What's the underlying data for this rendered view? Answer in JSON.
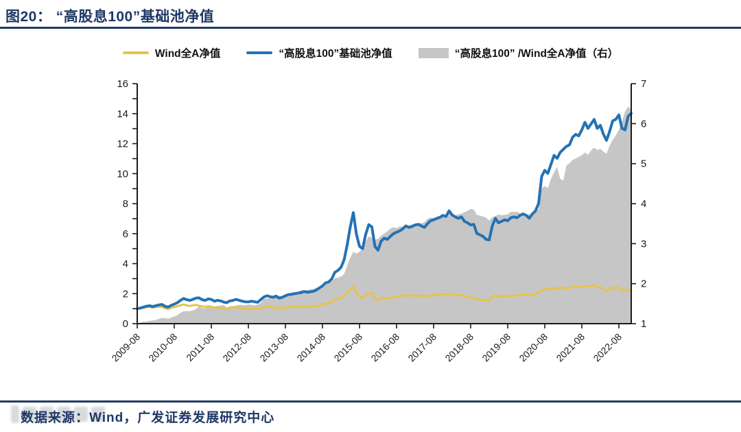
{
  "title": "图20： “高股息100”基础池净值",
  "footer": {
    "source_text": "数据来源：Wind，广发证券发展研究中心"
  },
  "colors": {
    "accent_navy": "#1F3864",
    "line_yellow": "#E6C34C",
    "line_blue": "#2472B5",
    "area_gray": "#C6C6C6",
    "axis_black": "#1a1a1a"
  },
  "legend": [
    {
      "label": "Wind全A净值",
      "type": "line",
      "color": "#E6C34C"
    },
    {
      "label": "“高股息100”基础池净值",
      "type": "line",
      "color": "#2472B5"
    },
    {
      "label": "“高股息100” /Wind全A净值（右）",
      "type": "area",
      "color": "#C6C6C6"
    }
  ],
  "chart_data": {
    "type": "line+area",
    "title": "“高股息100”基础池净值",
    "x_unit": "month",
    "x_start": "2009-08",
    "x_tick_every_months": 12,
    "x_tick_labels": [
      "2009-08",
      "2010-08",
      "2011-08",
      "2012-08",
      "2013-08",
      "2014-08",
      "2015-08",
      "2016-08",
      "2017-08",
      "2018-08",
      "2019-08",
      "2020-08",
      "2021-08",
      "2022-08"
    ],
    "left_axis": {
      "min": 0,
      "max": 16,
      "label_step": 2,
      "tick_step": 1
    },
    "right_axis": {
      "min": 1,
      "max": 7,
      "label_step": 1,
      "tick_step": 1
    },
    "grid": false,
    "legend_position": "top-center",
    "series": [
      {
        "name": "“高股息100” /Wind全A净值（右）",
        "type": "area",
        "axis": "right",
        "color": "#C6C6C6",
        "values": [
          1.0,
          1.02,
          1.05,
          1.05,
          1.07,
          1.08,
          1.09,
          1.12,
          1.14,
          1.14,
          1.12,
          1.15,
          1.18,
          1.21,
          1.27,
          1.31,
          1.31,
          1.31,
          1.33,
          1.36,
          1.43,
          1.39,
          1.38,
          1.42,
          1.42,
          1.43,
          1.44,
          1.45,
          1.47,
          1.4,
          1.41,
          1.41,
          1.45,
          1.47,
          1.47,
          1.46,
          1.48,
          1.47,
          1.46,
          1.48,
          1.52,
          1.62,
          1.63,
          1.64,
          1.64,
          1.67,
          1.7,
          1.69,
          1.72,
          1.73,
          1.78,
          1.79,
          1.79,
          1.84,
          1.84,
          1.84,
          1.86,
          1.86,
          1.9,
          1.92,
          1.97,
          2.03,
          2.04,
          2.06,
          2.14,
          2.15,
          2.18,
          2.24,
          2.45,
          2.65,
          2.8,
          2.75,
          2.8,
          2.88,
          3.05,
          3.18,
          3.15,
          3.1,
          3.12,
          3.2,
          3.25,
          3.31,
          3.38,
          3.41,
          3.39,
          3.43,
          3.43,
          3.43,
          3.45,
          3.48,
          3.5,
          3.52,
          3.51,
          3.53,
          3.62,
          3.65,
          3.64,
          3.66,
          3.65,
          3.68,
          3.69,
          3.76,
          3.74,
          3.71,
          3.73,
          3.75,
          3.79,
          3.82,
          3.87,
          3.85,
          3.72,
          3.7,
          3.68,
          3.65,
          3.58,
          3.66,
          3.69,
          3.73,
          3.71,
          3.72,
          3.73,
          3.8,
          3.79,
          3.8,
          3.76,
          3.7,
          3.72,
          3.73,
          3.77,
          3.8,
          3.86,
          4.38,
          4.44,
          4.39,
          4.62,
          4.78,
          4.92,
          4.62,
          4.58,
          4.95,
          5.01,
          5.09,
          5.13,
          5.17,
          5.21,
          5.28,
          5.22,
          5.33,
          5.4,
          5.34,
          5.37,
          5.3,
          5.25,
          5.45,
          5.6,
          5.7,
          5.85,
          6.05,
          6.3,
          6.43,
          6.35
        ]
      },
      {
        "name": "Wind全A净值",
        "type": "line",
        "axis": "left",
        "color": "#E6C34C",
        "width": 3,
        "values": [
          1.0,
          1.02,
          1.05,
          1.1,
          1.12,
          1.06,
          1.1,
          1.12,
          1.12,
          1.02,
          0.98,
          1.06,
          1.1,
          1.16,
          1.22,
          1.28,
          1.22,
          1.18,
          1.22,
          1.25,
          1.2,
          1.15,
          1.12,
          1.16,
          1.14,
          1.05,
          1.08,
          1.05,
          0.98,
          1.0,
          1.08,
          1.1,
          1.12,
          1.06,
          1.02,
          1.0,
          0.98,
          1.02,
          1.0,
          0.96,
          1.05,
          1.1,
          1.14,
          1.1,
          1.07,
          1.1,
          1.0,
          1.04,
          1.08,
          1.12,
          1.1,
          1.12,
          1.14,
          1.12,
          1.16,
          1.14,
          1.14,
          1.16,
          1.18,
          1.24,
          1.28,
          1.34,
          1.36,
          1.45,
          1.6,
          1.65,
          1.72,
          1.9,
          2.1,
          2.3,
          2.5,
          2.05,
          1.78,
          1.72,
          1.88,
          2.02,
          2.04,
          1.62,
          1.56,
          1.7,
          1.74,
          1.7,
          1.72,
          1.76,
          1.8,
          1.8,
          1.84,
          1.9,
          1.86,
          1.86,
          1.88,
          1.88,
          1.86,
          1.82,
          1.84,
          1.88,
          1.9,
          1.92,
          1.94,
          1.96,
          1.94,
          2.0,
          1.94,
          1.92,
          1.88,
          1.9,
          1.8,
          1.76,
          1.7,
          1.72,
          1.62,
          1.6,
          1.58,
          1.54,
          1.56,
          1.78,
          1.9,
          1.8,
          1.84,
          1.86,
          1.84,
          1.86,
          1.88,
          1.86,
          1.92,
          1.98,
          1.94,
          1.88,
          1.94,
          1.98,
          2.08,
          2.24,
          2.3,
          2.28,
          2.3,
          2.36,
          2.34,
          2.44,
          2.38,
          2.36,
          2.38,
          2.44,
          2.46,
          2.42,
          2.48,
          2.54,
          2.46,
          2.5,
          2.56,
          2.44,
          2.46,
          2.3,
          2.16,
          2.3,
          2.42,
          2.4,
          2.42,
          2.24,
          2.18,
          2.26,
          2.18
        ]
      },
      {
        "name": "“高股息100”基础池净值",
        "type": "line",
        "axis": "left",
        "color": "#2472B5",
        "width": 4,
        "values": [
          1.0,
          1.04,
          1.1,
          1.16,
          1.2,
          1.14,
          1.2,
          1.25,
          1.28,
          1.16,
          1.1,
          1.22,
          1.3,
          1.4,
          1.55,
          1.68,
          1.6,
          1.55,
          1.62,
          1.7,
          1.72,
          1.6,
          1.55,
          1.65,
          1.62,
          1.5,
          1.56,
          1.52,
          1.44,
          1.4,
          1.52,
          1.55,
          1.62,
          1.56,
          1.5,
          1.46,
          1.45,
          1.5,
          1.46,
          1.42,
          1.6,
          1.78,
          1.86,
          1.8,
          1.76,
          1.84,
          1.7,
          1.76,
          1.86,
          1.94,
          1.96,
          2.0,
          2.04,
          2.06,
          2.14,
          2.1,
          2.12,
          2.16,
          2.24,
          2.38,
          2.52,
          2.72,
          2.78,
          2.98,
          3.42,
          3.55,
          3.75,
          4.25,
          5.25,
          6.45,
          7.4,
          5.95,
          5.15,
          5.0,
          5.95,
          6.6,
          6.45,
          5.15,
          4.9,
          5.5,
          5.7,
          5.62,
          5.82,
          6.0,
          6.1,
          6.18,
          6.32,
          6.52,
          6.42,
          6.48,
          6.58,
          6.62,
          6.52,
          6.42,
          6.66,
          6.86,
          6.92,
          7.02,
          7.08,
          7.22,
          7.15,
          7.52,
          7.25,
          7.12,
          7.02,
          7.12,
          6.82,
          6.72,
          6.58,
          6.62,
          6.02,
          5.92,
          5.82,
          5.62,
          5.58,
          6.52,
          7.02,
          6.72,
          6.82,
          6.92,
          6.86,
          7.06,
          7.12,
          7.06,
          7.22,
          7.32,
          7.22,
          7.02,
          7.32,
          7.52,
          8.02,
          9.82,
          10.22,
          10.02,
          10.62,
          11.22,
          11.02,
          11.42,
          11.62,
          11.82,
          11.92,
          12.42,
          12.62,
          12.52,
          12.92,
          13.42,
          13.02,
          13.32,
          13.62,
          13.02,
          13.22,
          12.62,
          12.22,
          12.82,
          13.52,
          13.62,
          13.92,
          13.02,
          12.92,
          13.82,
          14.02
        ]
      }
    ]
  }
}
